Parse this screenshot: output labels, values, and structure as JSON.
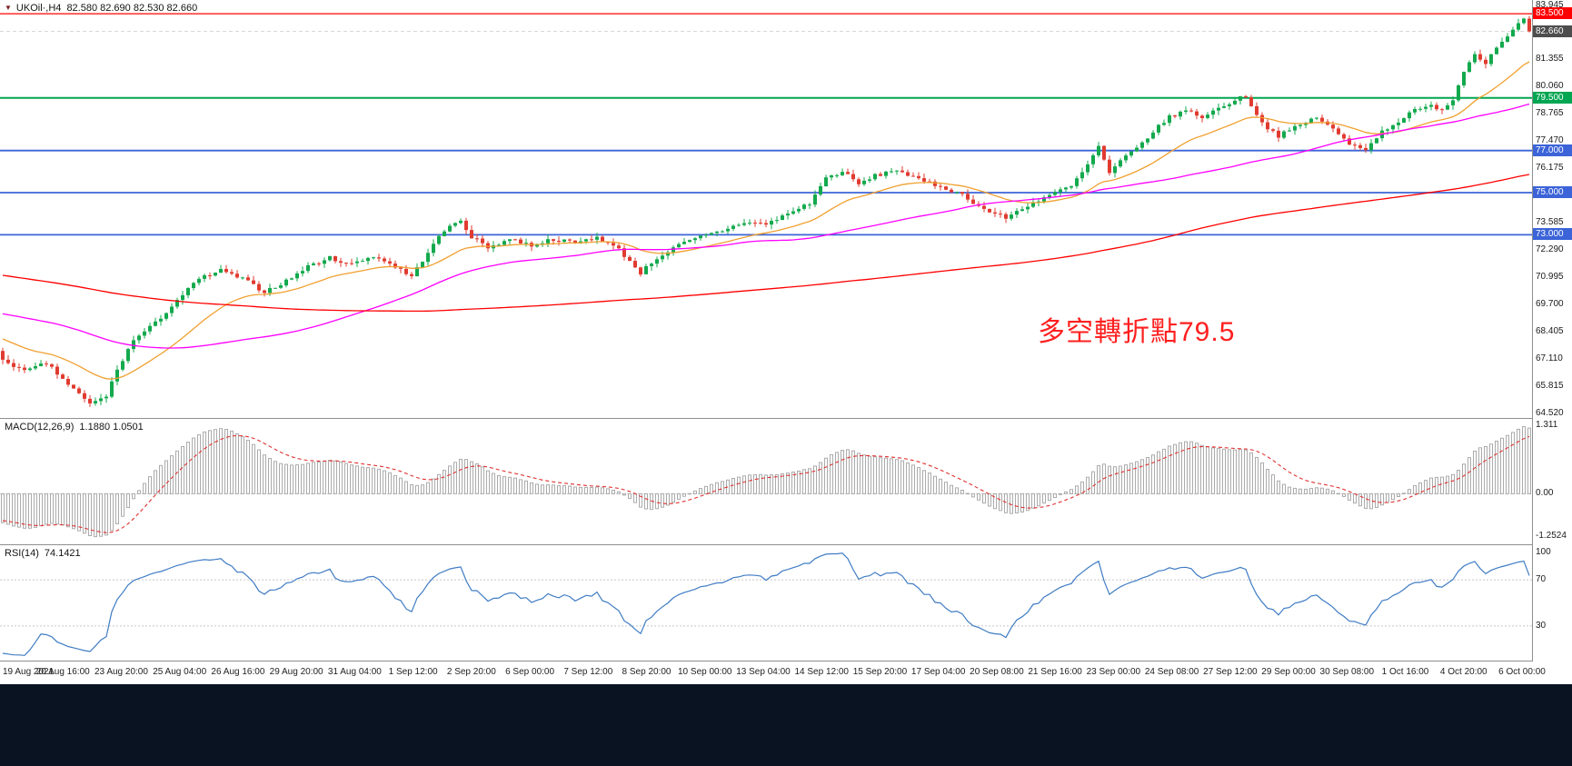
{
  "header": {
    "symbol": "UKOil·,H4",
    "quote_display": "82.580 82.690 82.530 82.660"
  },
  "chart_data": {
    "type": "candlestick",
    "symbol": "UKOil",
    "timeframe": "H4",
    "quote": {
      "open": 82.58,
      "high": 82.69,
      "low": 82.53,
      "close": 82.66
    },
    "colors": {
      "up": "#13a94d",
      "down": "#e13b30",
      "background": "#ffffff"
    },
    "annotation": {
      "text": "多空轉折點79.5",
      "color": "#ff1f1f"
    },
    "current_price": {
      "value": 82.66,
      "label": "82.660",
      "badge_color": "#4d4d4d"
    },
    "horizontal_lines": [
      {
        "price": 83.5,
        "label": "83.500",
        "color": "#ff0000",
        "width": 1.2
      },
      {
        "price": 79.5,
        "label": "79.500",
        "color": "#00a651",
        "width": 2
      },
      {
        "price": 77.0,
        "label": "77.000",
        "color": "#3c64d8",
        "width": 1.8
      },
      {
        "price": 75.0,
        "label": "75.000",
        "color": "#3c64d8",
        "width": 1.8
      },
      {
        "price": 73.0,
        "label": "73.000",
        "color": "#3c64d8",
        "width": 1.8
      }
    ],
    "y_axis": {
      "min": 64.3,
      "max": 84.15,
      "tick_prices": [
        83.945,
        81.355,
        80.06,
        78.765,
        77.47,
        76.175,
        73.585,
        72.29,
        70.995,
        69.7,
        68.405,
        67.11,
        65.815,
        64.52
      ]
    },
    "x_axis": {
      "labels": [
        "19 Aug 2021",
        "20 Aug 16:00",
        "23 Aug 20:00",
        "25 Aug 04:00",
        "26 Aug 16:00",
        "29 Aug 20:00",
        "31 Aug 04:00",
        "1 Sep 12:00",
        "2 Sep 20:00",
        "6 Sep 00:00",
        "7 Sep 12:00",
        "8 Sep 20:00",
        "10 Sep 00:00",
        "13 Sep 04:00",
        "14 Sep 12:00",
        "15 Sep 20:00",
        "17 Sep 04:00",
        "20 Sep 08:00",
        "21 Sep 16:00",
        "23 Sep 00:00",
        "24 Sep 08:00",
        "27 Sep 12:00",
        "29 Sep 00:00",
        "30 Sep 08:00",
        "1 Oct 16:00",
        "4 Oct 20:00",
        "6 Oct 00:00"
      ]
    },
    "bars_visible": 281,
    "price_path": {
      "lead_in": [
        [
          -200,
          74.0
        ],
        [
          -170,
          75.2
        ],
        [
          -145,
          73.5
        ],
        [
          -120,
          71.0
        ],
        [
          -100,
          69.5
        ],
        [
          -80,
          68.3
        ],
        [
          -60,
          69.3
        ],
        [
          -40,
          70.6
        ],
        [
          -25,
          69.3
        ],
        [
          -12,
          68.2
        ],
        [
          -1,
          67.4
        ]
      ],
      "visible": [
        [
          0,
          67.1
        ],
        [
          4,
          66.5
        ],
        [
          8,
          66.9
        ],
        [
          12,
          65.9
        ],
        [
          16,
          64.95
        ],
        [
          19,
          65.35
        ],
        [
          21,
          66.6
        ],
        [
          24,
          68.0
        ],
        [
          28,
          68.8
        ],
        [
          32,
          69.9
        ],
        [
          36,
          70.9
        ],
        [
          40,
          71.3
        ],
        [
          44,
          70.9
        ],
        [
          48,
          70.3
        ],
        [
          52,
          70.8
        ],
        [
          56,
          71.5
        ],
        [
          60,
          71.9
        ],
        [
          64,
          71.6
        ],
        [
          68,
          72.0
        ],
        [
          72,
          71.5
        ],
        [
          75,
          71.0
        ],
        [
          78,
          72.2
        ],
        [
          81,
          73.2
        ],
        [
          84,
          73.7
        ],
        [
          86,
          72.9
        ],
        [
          89,
          72.4
        ],
        [
          93,
          72.8
        ],
        [
          97,
          72.5
        ],
        [
          101,
          72.8
        ],
        [
          105,
          72.6
        ],
        [
          109,
          72.9
        ],
        [
          113,
          72.3
        ],
        [
          117,
          71.2
        ],
        [
          120,
          71.9
        ],
        [
          124,
          72.5
        ],
        [
          128,
          72.9
        ],
        [
          132,
          73.2
        ],
        [
          136,
          73.6
        ],
        [
          140,
          73.5
        ],
        [
          144,
          74.0
        ],
        [
          148,
          74.5
        ],
        [
          151,
          75.7
        ],
        [
          154,
          76.0
        ],
        [
          157,
          75.4
        ],
        [
          160,
          75.8
        ],
        [
          164,
          76.1
        ],
        [
          168,
          75.6
        ],
        [
          172,
          75.3
        ],
        [
          176,
          74.9
        ],
        [
          180,
          74.2
        ],
        [
          184,
          73.8
        ],
        [
          188,
          74.4
        ],
        [
          192,
          74.9
        ],
        [
          196,
          75.3
        ],
        [
          199,
          76.3
        ],
        [
          201,
          77.2
        ],
        [
          203,
          75.9
        ],
        [
          205,
          76.5
        ],
        [
          208,
          77.1
        ],
        [
          211,
          77.9
        ],
        [
          214,
          78.6
        ],
        [
          217,
          78.9
        ],
        [
          220,
          78.6
        ],
        [
          223,
          79.0
        ],
        [
          226,
          79.4
        ],
        [
          228,
          79.6
        ],
        [
          231,
          78.3
        ],
        [
          234,
          77.7
        ],
        [
          238,
          78.2
        ],
        [
          241,
          78.6
        ],
        [
          244,
          78.0
        ],
        [
          247,
          77.3
        ],
        [
          250,
          77.1
        ],
        [
          253,
          77.9
        ],
        [
          256,
          78.4
        ],
        [
          259,
          78.9
        ],
        [
          262,
          79.1
        ],
        [
          264,
          79.0
        ],
        [
          266,
          79.4
        ],
        [
          268,
          80.8
        ],
        [
          270,
          81.6
        ],
        [
          272,
          81.2
        ],
        [
          274,
          81.9
        ],
        [
          276,
          82.5
        ],
        [
          278,
          83.0
        ],
        [
          279,
          83.2
        ],
        [
          280,
          82.66
        ]
      ]
    },
    "moving_averages": [
      {
        "name": "ma-fast",
        "type": "ema",
        "period": 21,
        "color": "#f0a030"
      },
      {
        "name": "ma-mid",
        "type": "sma",
        "period": 60,
        "color": "#ff00ff"
      },
      {
        "name": "ma-slow",
        "type": "sma",
        "period": 200,
        "color": "#ff0000"
      }
    ],
    "macd": {
      "label": "MACD(12,26,9)",
      "values": [
        1.188,
        1.0501
      ],
      "values_display": "1.1880 1.0501",
      "axis_labels": [
        "1.311",
        "0.00",
        "-1.2524"
      ],
      "histogram_color": "#ababab",
      "signal_color": "#e03030"
    },
    "rsi": {
      "label": "RSI(14)",
      "value": 74.1421,
      "value_display": "74.1421",
      "axis_labels": [
        "100",
        "70",
        "30"
      ],
      "levels": [
        70,
        30
      ],
      "color": "#3f7cc4"
    }
  }
}
